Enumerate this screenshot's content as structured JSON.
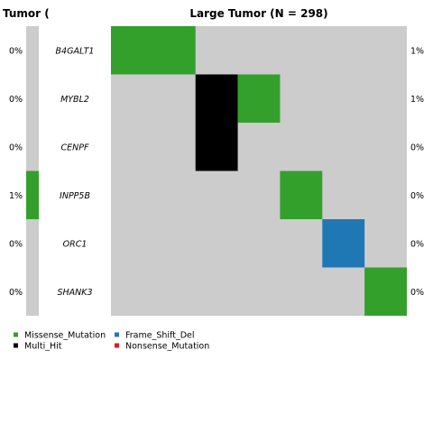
{
  "chart_data": {
    "type": "heatmap",
    "panels": [
      {
        "title": "Tumor (",
        "samples": 1,
        "left_percents": [
          "0%",
          "0%",
          "0%",
          "1%",
          "0%",
          "0%"
        ],
        "cells": [
          {
            "gene": "INPP5B",
            "sample": 0,
            "variant": "Missense_Mutation"
          }
        ]
      },
      {
        "title": "Large Tumor (N = 298)",
        "samples": 7,
        "right_percents": [
          "1%",
          "1%",
          "0%",
          "0%",
          "0%",
          "0%"
        ],
        "cells": [
          {
            "gene": "B4GALT1",
            "sample": 0,
            "span": 2,
            "variant": "Missense_Mutation"
          },
          {
            "gene": "MYBL2",
            "sample": 2,
            "variant": "Multi_Hit"
          },
          {
            "gene": "MYBL2",
            "sample": 3,
            "variant": "Missense_Mutation"
          },
          {
            "gene": "CENPF",
            "sample": 2,
            "variant": "Multi_Hit"
          },
          {
            "gene": "INPP5B",
            "sample": 4,
            "variant": "Missense_Mutation"
          },
          {
            "gene": "ORC1",
            "sample": 5,
            "variant": "Frame_Shift_Del"
          },
          {
            "gene": "SHANK3",
            "sample": 6,
            "variant": "Missense_Mutation"
          }
        ]
      }
    ],
    "genes": [
      "B4GALT1",
      "MYBL2",
      "CENPF",
      "INPP5B",
      "ORC1",
      "SHANK3"
    ],
    "legend": [
      {
        "label": "Missense_Mutation",
        "color": "#33a02c"
      },
      {
        "label": "Frame_Shift_Del",
        "color": "#1f78b4"
      },
      {
        "label": "Multi_Hit",
        "color": "#000000"
      },
      {
        "label": "Nonsense_Mutation",
        "color": "#e31a1c"
      }
    ],
    "background_color": "#cccccc",
    "legend_position": "bottom-left"
  }
}
